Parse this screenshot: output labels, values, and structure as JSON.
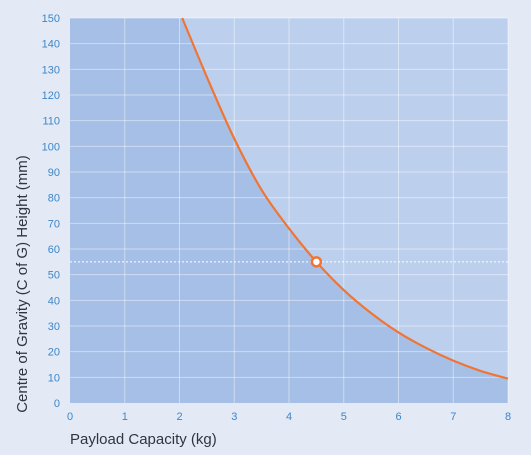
{
  "chart_data": {
    "type": "line",
    "title": "",
    "xlabel": "Payload Capacity (kg)",
    "ylabel": "Centre of Gravity (C of G) Height  (mm)",
    "xlim": [
      0,
      8
    ],
    "ylim": [
      0,
      150
    ],
    "x_ticks": [
      "0",
      "1",
      "2",
      "3",
      "4",
      "5",
      "6",
      "7",
      "8"
    ],
    "y_ticks": [
      "0",
      "10",
      "20",
      "30",
      "40",
      "50",
      "60",
      "70",
      "80",
      "90",
      "100",
      "110",
      "120",
      "130",
      "140",
      "150"
    ],
    "grid": true,
    "legend": "none",
    "series": [
      {
        "x": [
          2.05,
          2.5,
          3.0,
          3.5,
          4.0,
          4.5,
          5.0,
          5.5,
          6.0,
          6.5,
          7.0,
          7.5,
          8.0
        ],
        "y": [
          150,
          127,
          103,
          83,
          68,
          55,
          44,
          35,
          27.5,
          21.5,
          16.5,
          12.5,
          9.5
        ]
      }
    ],
    "marker": {
      "x": 4.5,
      "y": 55
    },
    "reference_line": {
      "axis": "y",
      "value": 55,
      "style": "dotted"
    },
    "colors": {
      "curve": "#f07535",
      "under_fill": "#a6bfe6",
      "over_fill": "#bcd0ee",
      "background": "#e3eaf6",
      "tick_labels": "#3d86c8",
      "axis_titles": "#2f3640",
      "grid": "#ffffff"
    }
  }
}
